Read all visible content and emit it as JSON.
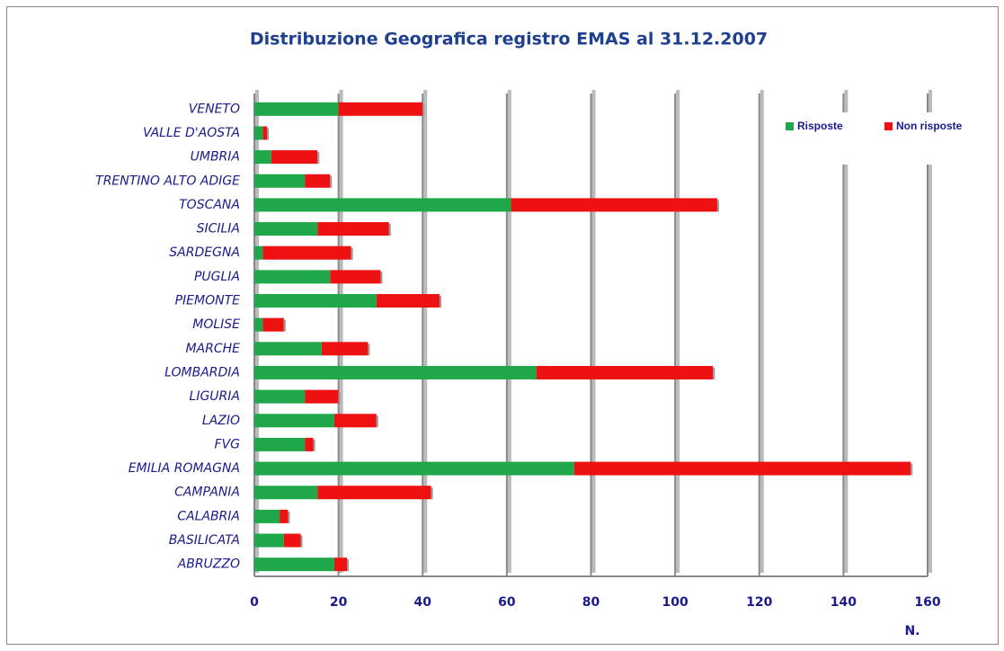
{
  "chart_data": {
    "type": "stacked_barh",
    "title": "Distribuzione Geografica registro EMAS al 31.12.2007",
    "xlabel": "N.",
    "categories": [
      "VENETO",
      "VALLE D'AOSTA",
      "UMBRIA",
      "TRENTINO ALTO ADIGE",
      "TOSCANA",
      "SICILIA",
      "SARDEGNA",
      "PUGLIA",
      "PIEMONTE",
      "MOLISE",
      "MARCHE",
      "LOMBARDIA",
      "LIGURIA",
      "LAZIO",
      "FVG",
      "EMILIA ROMAGNA",
      "CAMPANIA",
      "CALABRIA",
      "BASILICATA",
      "ABRUZZO"
    ],
    "series": [
      {
        "name": "Risposte",
        "color": "#1fa84a",
        "values": [
          20,
          2,
          4,
          12,
          61,
          15,
          2,
          18,
          29,
          2,
          16,
          67,
          12,
          19,
          12,
          76,
          15,
          6,
          7,
          19
        ]
      },
      {
        "name": "Non risposte",
        "color": "#ee1111",
        "values": [
          20,
          1,
          11,
          6,
          49,
          17,
          21,
          12,
          15,
          5,
          11,
          42,
          8,
          10,
          2,
          80,
          27,
          2,
          4,
          3
        ]
      }
    ],
    "xlim": [
      0,
      160
    ],
    "xticks": [
      0,
      20,
      40,
      60,
      80,
      100,
      120,
      140,
      160
    ],
    "grid": true,
    "legend": "upper right"
  }
}
